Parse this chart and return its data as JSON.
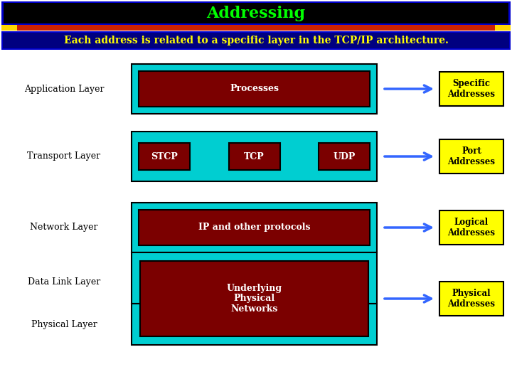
{
  "title": "Addressing",
  "title_color": "#00FF00",
  "title_bg": "#000000",
  "title_border": "#0000CC",
  "subtitle": "Each address is related to a specific layer in the TCP/IP architecture.",
  "subtitle_color": "#FFFF00",
  "subtitle_bg": "#000080",
  "subtitle_border": "#0000CC",
  "bg_color": "#FFFFFF",
  "header_stripe_gold": "#FFD700",
  "header_stripe_red": "#CC2200",
  "teal": "#00CED1",
  "dark_red": "#7B0000",
  "yellow": "#FFFF00",
  "yellow_border": "#000000",
  "blue_arrow": "#3366FF",
  "layer_label_color": "#000000",
  "layers": [
    {
      "label": "Application Layer",
      "box_label": "Processes",
      "sub_boxes": [],
      "addr_label": "Specific\nAddresses",
      "extra_label": null
    },
    {
      "label": "Transport Layer",
      "box_label": null,
      "sub_boxes": [
        "STCP",
        "TCP",
        "UDP"
      ],
      "addr_label": "Port\nAddresses",
      "extra_label": null
    },
    {
      "label": "Network Layer",
      "box_label": "IP and other protocols",
      "sub_boxes": [],
      "addr_label": "Logical\nAddresses",
      "extra_label": null
    },
    {
      "label": "Data Link Layer",
      "box_label": "Underlying\nPhysical\nNetworks",
      "sub_boxes": [],
      "addr_label": "Physical\nAddresses",
      "extra_label": "Physical Layer"
    }
  ]
}
